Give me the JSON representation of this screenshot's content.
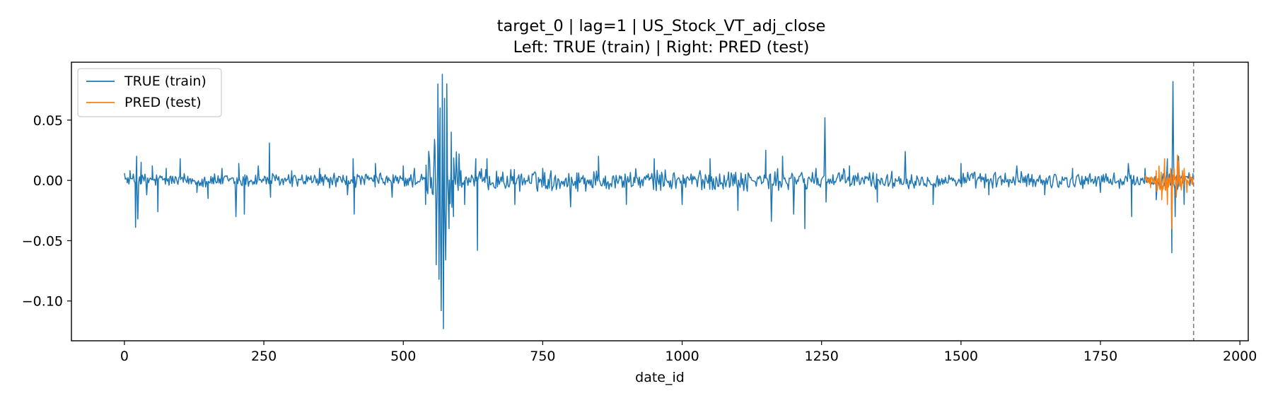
{
  "chart_data": {
    "type": "line",
    "title": "target_0 | lag=1 | US_Stock_VT_adj_close",
    "subtitle": "Left: TRUE (train) | Right: PRED (test)",
    "xlabel": "date_id",
    "ylabel": "",
    "xlim": [
      -95,
      2015
    ],
    "ylim": [
      -0.133,
      0.098
    ],
    "xticks": [
      0,
      250,
      500,
      750,
      1000,
      1250,
      1500,
      1750,
      2000
    ],
    "xtick_labels": [
      "0",
      "250",
      "500",
      "750",
      "1000",
      "1250",
      "1500",
      "1750",
      "2000"
    ],
    "yticks": [
      0.05,
      0.0,
      -0.05,
      -0.1
    ],
    "ytick_labels": [
      "0.05",
      "0.00",
      "−0.05",
      "−0.10"
    ],
    "vline_x": 1917,
    "legend_position": "upper-left",
    "grid": false,
    "series": [
      {
        "name": "TRUE (train)",
        "color": "#1f77b4",
        "x_range": [
          0,
          1916
        ],
        "anchors": [
          [
            0,
            0.006
          ],
          [
            5,
            -0.002
          ],
          [
            10,
            0.008
          ],
          [
            20,
            -0.039
          ],
          [
            22,
            0.02
          ],
          [
            24,
            -0.032
          ],
          [
            30,
            0.015
          ],
          [
            40,
            -0.012
          ],
          [
            50,
            0.012
          ],
          [
            60,
            -0.026
          ],
          [
            75,
            0.01
          ],
          [
            100,
            0.018
          ],
          [
            130,
            -0.01
          ],
          [
            150,
            -0.015
          ],
          [
            175,
            0.01
          ],
          [
            200,
            -0.03
          ],
          [
            205,
            0.014
          ],
          [
            215,
            -0.028
          ],
          [
            240,
            0.012
          ],
          [
            260,
            0.031
          ],
          [
            262,
            -0.014
          ],
          [
            300,
            0.008
          ],
          [
            350,
            0.01
          ],
          [
            400,
            -0.012
          ],
          [
            410,
            0.018
          ],
          [
            412,
            -0.028
          ],
          [
            450,
            0.014
          ],
          [
            480,
            -0.014
          ],
          [
            500,
            0.012
          ],
          [
            520,
            0.01
          ],
          [
            540,
            -0.02
          ],
          [
            556,
            0.034
          ],
          [
            559,
            -0.07
          ],
          [
            562,
            0.08
          ],
          [
            564,
            -0.082
          ],
          [
            566,
            0.06
          ],
          [
            568,
            -0.108
          ],
          [
            570,
            0.088
          ],
          [
            572,
            -0.123
          ],
          [
            574,
            0.068
          ],
          [
            576,
            -0.066
          ],
          [
            578,
            0.08
          ],
          [
            582,
            -0.04
          ],
          [
            586,
            0.04
          ],
          [
            590,
            -0.03
          ],
          [
            600,
            0.022
          ],
          [
            610,
            -0.02
          ],
          [
            630,
            0.018
          ],
          [
            633,
            -0.058
          ],
          [
            650,
            0.018
          ],
          [
            700,
            -0.02
          ],
          [
            750,
            0.01
          ],
          [
            800,
            -0.022
          ],
          [
            850,
            0.02
          ],
          [
            900,
            -0.02
          ],
          [
            950,
            0.018
          ],
          [
            1000,
            -0.02
          ],
          [
            1050,
            0.018
          ],
          [
            1100,
            -0.025
          ],
          [
            1150,
            0.025
          ],
          [
            1160,
            -0.034
          ],
          [
            1180,
            0.02
          ],
          [
            1200,
            -0.028
          ],
          [
            1220,
            -0.04
          ],
          [
            1240,
            0.01
          ],
          [
            1256,
            0.052
          ],
          [
            1258,
            -0.018
          ],
          [
            1300,
            0.012
          ],
          [
            1350,
            -0.018
          ],
          [
            1400,
            0.024
          ],
          [
            1450,
            -0.02
          ],
          [
            1500,
            0.014
          ],
          [
            1550,
            -0.012
          ],
          [
            1600,
            0.012
          ],
          [
            1650,
            -0.012
          ],
          [
            1700,
            0.01
          ],
          [
            1750,
            -0.01
          ],
          [
            1800,
            0.014
          ],
          [
            1806,
            -0.03
          ],
          [
            1830,
            0.01
          ],
          [
            1850,
            -0.016
          ],
          [
            1870,
            0.018
          ],
          [
            1878,
            -0.06
          ],
          [
            1880,
            0.082
          ],
          [
            1884,
            -0.03
          ],
          [
            1890,
            0.02
          ],
          [
            1900,
            -0.02
          ],
          [
            1916,
            0.006
          ]
        ]
      },
      {
        "name": "PRED (test)",
        "color": "#ff7f0e",
        "x_range": [
          1830,
          1916
        ],
        "anchors": [
          [
            1830,
            0.004
          ],
          [
            1840,
            -0.006
          ],
          [
            1850,
            0.008
          ],
          [
            1855,
            0.012
          ],
          [
            1860,
            -0.016
          ],
          [
            1865,
            0.018
          ],
          [
            1870,
            -0.02
          ],
          [
            1876,
            0.01
          ],
          [
            1878,
            -0.04
          ],
          [
            1882,
            0.01
          ],
          [
            1886,
            -0.014
          ],
          [
            1888,
            0.021
          ],
          [
            1890,
            0.016
          ],
          [
            1895,
            -0.008
          ],
          [
            1900,
            0.01
          ],
          [
            1905,
            -0.01
          ],
          [
            1910,
            0.005
          ],
          [
            1916,
            -0.004
          ]
        ]
      }
    ]
  }
}
